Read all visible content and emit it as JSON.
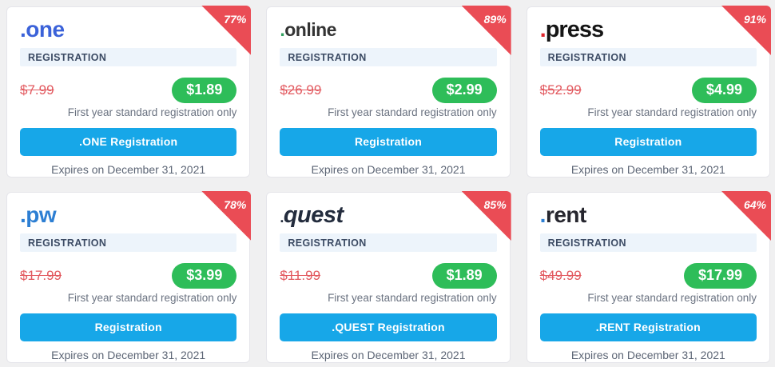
{
  "shared": {
    "registration_header": "REGISTRATION",
    "note": "First year standard registration only",
    "expires": "Expires on December 31, 2021",
    "logo_dot": "."
  },
  "colors": {
    "page_background": "#f0f0f1",
    "card_background": "#ffffff",
    "card_border": "#e5e5ea",
    "ribbon_red": "#ea4c55",
    "header_strip_bg": "#edf4fb",
    "header_strip_text": "#3c4b64",
    "old_price_red": "#e2595f",
    "new_price_green": "#2ebd59",
    "button_blue": "#17a7e8",
    "muted_text": "#5c6575"
  },
  "cards": [
    {
      "tld": ".one",
      "discount": "77%",
      "old_price": "$7.99",
      "new_price": "$1.89",
      "button_label": ".ONE Registration",
      "logo": {
        "name": "one",
        "dot_color": "#3b62d9",
        "text_color": "#3b62d9"
      }
    },
    {
      "tld": ".online",
      "discount": "89%",
      "old_price": "$26.99",
      "new_price": "$2.99",
      "button_label": "Registration",
      "logo": {
        "name": "online",
        "dot_color": "#31a05f",
        "text_color": "#333333"
      }
    },
    {
      "tld": ".press",
      "discount": "91%",
      "old_price": "$52.99",
      "new_price": "$4.99",
      "button_label": "Registration",
      "logo": {
        "name": "press",
        "dot_color": "#e0262d",
        "text_color": "#151515"
      }
    },
    {
      "tld": ".pw",
      "discount": "78%",
      "old_price": "$17.99",
      "new_price": "$3.99",
      "button_label": "Registration",
      "logo": {
        "name": "pw",
        "dot_color": "#2d7fd3",
        "text_color": "#2d7fd3"
      }
    },
    {
      "tld": ".quest",
      "discount": "85%",
      "old_price": "$11.99",
      "new_price": "$1.89",
      "button_label": ".QUEST Registration",
      "logo": {
        "name": "quest",
        "dot_color": "#232c3d",
        "text_color": "#232c3d"
      }
    },
    {
      "tld": ".rent",
      "discount": "64%",
      "old_price": "$49.99",
      "new_price": "$17.99",
      "button_label": ".RENT Registration",
      "logo": {
        "name": "rent",
        "dot_color": "#2d7fd3",
        "text_color": "#26262e"
      }
    }
  ]
}
